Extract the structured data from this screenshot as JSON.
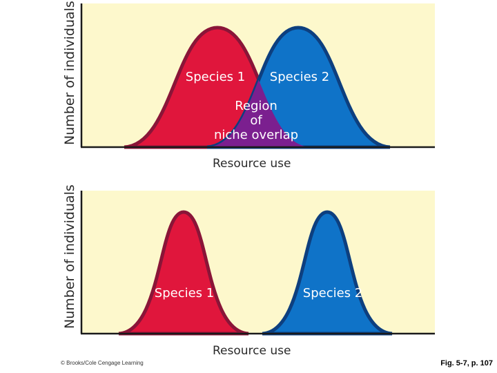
{
  "top": {
    "ylabel": "Number of individuals",
    "xlabel": "Resource use",
    "species1": "Species 1",
    "species2": "Species 2",
    "overlap": [
      "Region",
      "of",
      "niche overlap"
    ]
  },
  "bottom": {
    "ylabel": "Number of individuals",
    "xlabel": "Resource use",
    "species1": "Species 1",
    "species2": "Species 2"
  },
  "colors": {
    "background": "#fdf8cc",
    "species1_fill": "#e0163c",
    "species1_edge": "#8a1538",
    "species2_fill": "#0f73c8",
    "species2_edge": "#0d3f7f",
    "overlap_fill": "#7b1f8f"
  },
  "footer": {
    "credit": "© Brooks/Cole  Cengage Learning",
    "figure_ref": "Fig. 5-7, p. 107"
  }
}
